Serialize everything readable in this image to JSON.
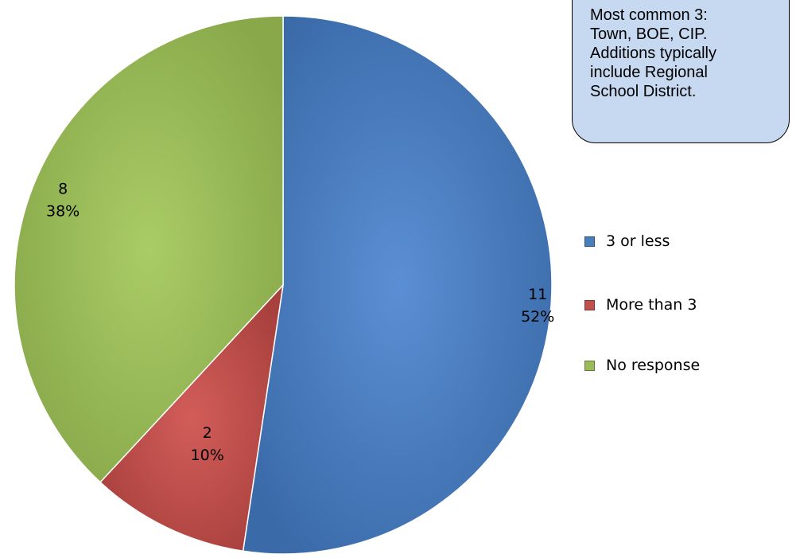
{
  "chart_data": {
    "type": "pie",
    "title": "",
    "slices": [
      {
        "name": "3 or less",
        "value": 11,
        "percent": "52%",
        "color": "#4a7ebb"
      },
      {
        "name": "More than 3",
        "value": 2,
        "percent": "10%",
        "color": "#c0504d"
      },
      {
        "name": "No response",
        "value": 8,
        "percent": "38%",
        "color": "#9bbb59"
      }
    ],
    "legend_position": "right",
    "annotation": "Most common 3:\nTown, BOE, CIP.\nAdditions typically\ninclude Regional\nSchool District."
  }
}
